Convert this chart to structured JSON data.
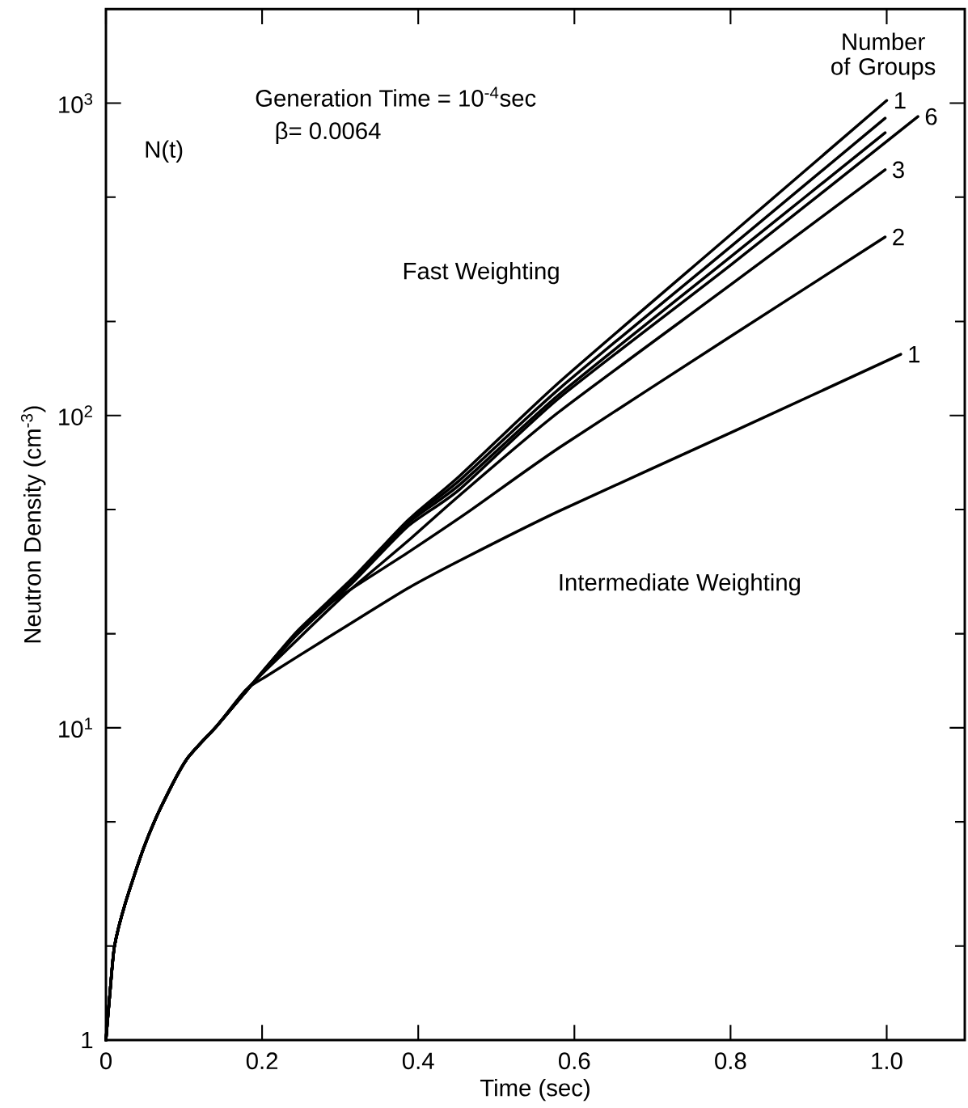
{
  "chart_data": {
    "type": "line",
    "xlabel": "Time (sec)",
    "ylabel": "Neutron Density (cm$^{-3}$)",
    "legend_title": "Number of Groups",
    "annotations": [
      "Generation Time = 10$^{-4}$sec",
      "β= 0.0064",
      "N(t)",
      "Fast Weighting",
      "Intermediate Weighting"
    ],
    "log": "y",
    "line_style": "solid",
    "xlim": [
      0,
      1.1
    ],
    "ylim": [
      1,
      2000
    ],
    "xticks": [
      0,
      0.2,
      0.4,
      0.6,
      0.8,
      {
        "value": 1,
        "label": "1.0"
      }
    ],
    "yticks": [
      1,
      {
        "value": 2,
        "label": null
      },
      {
        "value": 5,
        "label": null
      },
      {
        "value": 10,
        "label": "10$^{1}$"
      },
      {
        "value": 20,
        "label": null
      },
      {
        "value": 50,
        "label": null
      },
      {
        "value": 100,
        "label": "10$^{2}$"
      },
      {
        "value": 200,
        "label": null
      },
      {
        "value": 500,
        "label": null
      },
      {
        "value": 1000,
        "label": "10$^{3}$"
      }
    ],
    "series": [
      {
        "name": "1",
        "color": "#000000",
        "x": [
          0,
          0.006,
          0.011,
          0.024,
          0.048,
          0.071,
          0.103,
          0.143,
          0.183,
          0.207,
          0.246,
          0.318,
          0.386,
          0.453,
          0.581,
          0.8,
          1.0
        ],
        "values": [
          1,
          1.5,
          2.0,
          2.7,
          4.1,
          5.6,
          7.9,
          10.2,
          13.4,
          15.8,
          20.5,
          30.5,
          46,
          64,
          128,
          379,
          1020
        ]
      },
      {
        "color": "#000000",
        "x": [
          0,
          0.006,
          0.011,
          0.024,
          0.048,
          0.071,
          0.103,
          0.143,
          0.183,
          0.207,
          0.246,
          0.318,
          0.386,
          0.453,
          0.581,
          0.8,
          0.998
        ],
        "values": [
          1,
          1.5,
          2.0,
          2.7,
          4.1,
          5.6,
          7.9,
          10.2,
          13.4,
          15.8,
          20.3,
          30,
          45.5,
          62,
          122,
          347,
          895
        ]
      },
      {
        "color": "#000000",
        "x": [
          0,
          0.006,
          0.011,
          0.024,
          0.048,
          0.071,
          0.103,
          0.143,
          0.183,
          0.207,
          0.246,
          0.318,
          0.386,
          0.453,
          0.581,
          0.8,
          0.998
        ],
        "values": [
          1,
          1.5,
          2.0,
          2.7,
          4.1,
          5.6,
          7.9,
          10.2,
          13.4,
          15.7,
          20.2,
          29.8,
          45,
          60,
          117,
          322,
          804
        ]
      },
      {
        "name": "6",
        "color": "#000000",
        "x": [
          0,
          0.006,
          0.011,
          0.024,
          0.048,
          0.071,
          0.103,
          0.143,
          0.183,
          0.207,
          0.246,
          0.318,
          0.386,
          0.453,
          0.581,
          0.8,
          1.04
        ],
        "values": [
          1,
          1.5,
          2.0,
          2.7,
          4.1,
          5.6,
          7.9,
          10.2,
          13.4,
          15.6,
          20,
          29.5,
          44,
          58,
          114,
          303,
          906
        ]
      },
      {
        "name": "3",
        "color": "#000000",
        "x": [
          0,
          0.006,
          0.011,
          0.024,
          0.048,
          0.071,
          0.103,
          0.143,
          0.183,
          0.239,
          0.306,
          0.386,
          0.453,
          0.581,
          0.8,
          0.998
        ],
        "values": [
          1,
          1.5,
          2.0,
          2.7,
          4.1,
          5.6,
          7.9,
          10.2,
          13.5,
          18.5,
          26.7,
          39.5,
          55.5,
          103,
          262,
          612
        ]
      },
      {
        "name": "2",
        "color": "#000000",
        "x": [
          0,
          0.006,
          0.011,
          0.024,
          0.048,
          0.071,
          0.103,
          0.143,
          0.183,
          0.227,
          0.287,
          0.386,
          0.466,
          0.581,
          0.8,
          0.998
        ],
        "values": [
          1,
          1.5,
          2.0,
          2.7,
          4.1,
          5.6,
          7.9,
          10.2,
          13.4,
          18.0,
          25,
          36.3,
          49.5,
          79,
          179,
          373
        ]
      },
      {
        "name": "1",
        "color": "#000000",
        "x": [
          0,
          0.006,
          0.011,
          0.024,
          0.048,
          0.071,
          0.103,
          0.143,
          0.179,
          0.207,
          0.278,
          0.386,
          0.458,
          0.581,
          0.8,
          1.018
        ],
        "values": [
          1,
          1.5,
          2.0,
          2.7,
          4.1,
          5.6,
          7.9,
          10.2,
          13.2,
          14.7,
          19.0,
          27.9,
          34.8,
          49.5,
          88,
          157
        ]
      }
    ]
  }
}
